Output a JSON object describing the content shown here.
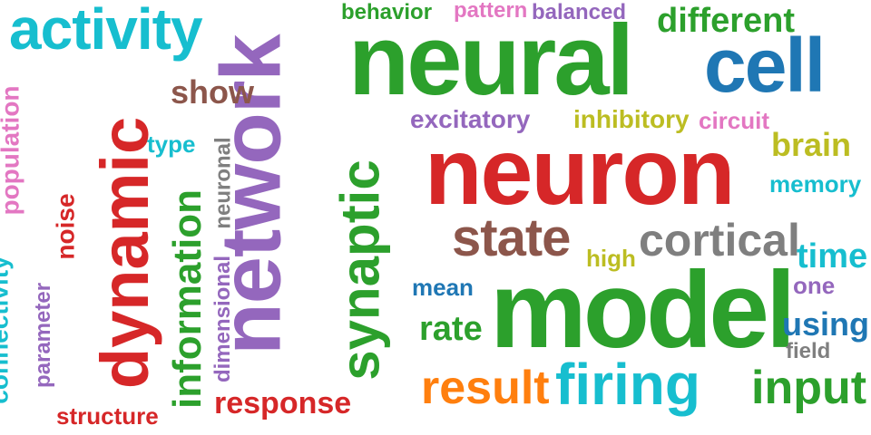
{
  "words": [
    {
      "text": "neuron",
      "color": "#d62728"
    },
    {
      "text": "network",
      "color": "#9467bd"
    },
    {
      "text": "model",
      "color": "#2ca02c"
    },
    {
      "text": "neural",
      "color": "#2ca02c"
    },
    {
      "text": "dynamic",
      "color": "#d62728"
    },
    {
      "text": "activity",
      "color": "#17becf"
    },
    {
      "text": "cell",
      "color": "#1f77b4"
    },
    {
      "text": "synaptic",
      "color": "#2ca02c"
    },
    {
      "text": "state",
      "color": "#8c564b"
    },
    {
      "text": "cortical",
      "color": "#7f7f7f"
    },
    {
      "text": "firing",
      "color": "#17becf"
    },
    {
      "text": "result",
      "color": "#ff7f0e"
    },
    {
      "text": "input",
      "color": "#2ca02c"
    },
    {
      "text": "information",
      "color": "#2ca02c"
    },
    {
      "text": "different",
      "color": "#2ca02c"
    },
    {
      "text": "brain",
      "color": "#bcbd22"
    },
    {
      "text": "show",
      "color": "#8c564b"
    },
    {
      "text": "excitatory",
      "color": "#9467bd"
    },
    {
      "text": "inhibitory",
      "color": "#bcbd22"
    },
    {
      "text": "circuit",
      "color": "#e377c2"
    },
    {
      "text": "pattern",
      "color": "#e377c2"
    },
    {
      "text": "balanced",
      "color": "#9467bd"
    },
    {
      "text": "behavior",
      "color": "#2ca02c"
    },
    {
      "text": "type",
      "color": "#17becf"
    },
    {
      "text": "population",
      "color": "#e377c2"
    },
    {
      "text": "connectivity",
      "color": "#17becf"
    },
    {
      "text": "noise",
      "color": "#d62728"
    },
    {
      "text": "parameter",
      "color": "#9467bd"
    },
    {
      "text": "neuronal",
      "color": "#7f7f7f"
    },
    {
      "text": "dimensional",
      "color": "#9467bd"
    },
    {
      "text": "structure",
      "color": "#d62728"
    },
    {
      "text": "response",
      "color": "#d62728"
    },
    {
      "text": "rate",
      "color": "#2ca02c"
    },
    {
      "text": "mean",
      "color": "#1f77b4"
    },
    {
      "text": "high",
      "color": "#bcbd22"
    },
    {
      "text": "memory",
      "color": "#17becf"
    },
    {
      "text": "time",
      "color": "#17becf"
    },
    {
      "text": "one",
      "color": "#9467bd"
    },
    {
      "text": "using",
      "color": "#1f77b4"
    },
    {
      "text": "field",
      "color": "#7f7f7f"
    }
  ]
}
